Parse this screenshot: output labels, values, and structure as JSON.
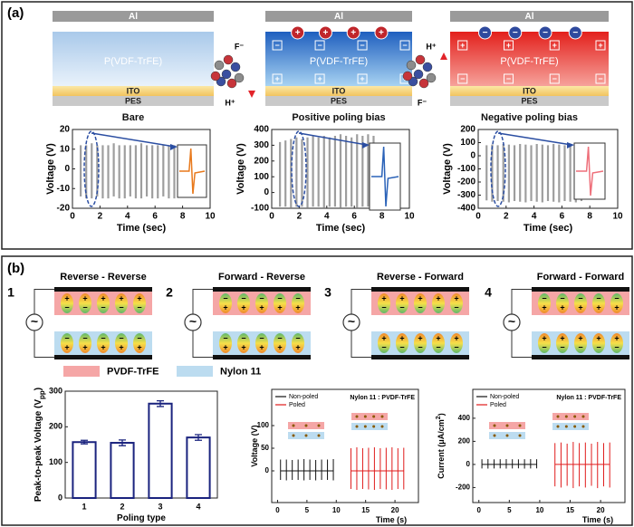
{
  "panels": [
    "(a)",
    "(b)"
  ],
  "symbols": {
    "plus": "+",
    "minus": "−",
    "ac": "~"
  },
  "devices": [
    {
      "electrode": "Al",
      "film": "P(VDF-TrFE)",
      "ito": "ITO",
      "pes": "PES",
      "caption": "Bare",
      "poling": "none"
    },
    {
      "electrode": "Al",
      "film": "P(VDF-TrFE)",
      "ito": "ITO",
      "pes": "PES",
      "caption": "Positive poling bias",
      "poling": "positive"
    },
    {
      "electrode": "Al",
      "film": "P(VDF-TrFE)",
      "ito": "ITO",
      "pes": "PES",
      "caption": "Negative poling bias",
      "poling": "negative"
    }
  ],
  "molecules": [
    {
      "top": "F⁻",
      "bottom": "H⁺"
    },
    {
      "top": "H⁺",
      "bottom": "F⁻"
    }
  ],
  "configs": [
    {
      "number": "1",
      "title": "Reverse - Reverse",
      "pvdf": "up",
      "nylon": "down"
    },
    {
      "number": "2",
      "title": "Forward - Reverse",
      "pvdf": "down",
      "nylon": "down"
    },
    {
      "number": "3",
      "title": "Reverse - Forward",
      "pvdf": "up",
      "nylon": "up"
    },
    {
      "number": "4",
      "title": "Forward - Forward",
      "pvdf": "down",
      "nylon": "up"
    }
  ],
  "legend": [
    {
      "label": "PVDF-TrFE",
      "color": "#f5a6a6"
    },
    {
      "label": "Nylon 11",
      "color": "#bcdcf0"
    }
  ],
  "chart_data": [
    {
      "type": "spikes",
      "x_label": "Time (sec)",
      "y_label": "Voltage (V)",
      "xlim": [
        0,
        10
      ],
      "xticks": [
        0,
        2,
        4,
        6,
        8,
        10
      ],
      "ylim": [
        -20,
        20
      ],
      "yticks": [
        -20,
        -10,
        0,
        10,
        20
      ],
      "series": [
        {
          "color": "#9e9e9e",
          "x": [
            0.6,
            1.0,
            1.4,
            1.8,
            2.2,
            2.6,
            3.0,
            3.4,
            3.8,
            4.2,
            4.6,
            5.0,
            5.4,
            5.8,
            6.2,
            6.6,
            7.0,
            7.4
          ],
          "highs": [
            12,
            12,
            13,
            12,
            12,
            12,
            13,
            12,
            12,
            12,
            12,
            13,
            12,
            12,
            12,
            12,
            12,
            12
          ],
          "lows": [
            -14,
            -15,
            -15,
            -14,
            -15,
            -15,
            -14,
            -15,
            -15,
            -14,
            -15,
            -15,
            -14,
            -15,
            -15,
            -14,
            -15,
            -15
          ]
        }
      ]
    },
    {
      "type": "spikes",
      "x_label": "Time (sec)",
      "y_label": "Voltage (V)",
      "xlim": [
        0,
        10
      ],
      "xticks": [
        0,
        2,
        4,
        6,
        8,
        10
      ],
      "ylim": [
        -100,
        400
      ],
      "yticks": [
        -100,
        0,
        100,
        200,
        300,
        400
      ],
      "series": [
        {
          "color": "#9e9e9e",
          "x": [
            0.6,
            1.0,
            1.4,
            1.8,
            2.2,
            2.6,
            3.0,
            3.4,
            3.8,
            4.2,
            4.6,
            5.0,
            5.4,
            5.8,
            6.2,
            6.6,
            7.0,
            7.4
          ],
          "highs": [
            320,
            330,
            340,
            350,
            340,
            350,
            360,
            350,
            360,
            350,
            360,
            370,
            360,
            350,
            370,
            360,
            370,
            360
          ],
          "lows": [
            -90,
            -90,
            -95,
            -90,
            -90,
            -95,
            -90,
            -90,
            -95,
            -90,
            -90,
            -95,
            -90,
            -90,
            -95,
            -90,
            -90,
            -95
          ]
        }
      ]
    },
    {
      "type": "spikes",
      "x_label": "Time (sec)",
      "y_label": "Voltage (V)",
      "xlim": [
        0,
        10
      ],
      "xticks": [
        0,
        2,
        4,
        6,
        8,
        10
      ],
      "ylim": [
        -400,
        200
      ],
      "yticks": [
        -400,
        -300,
        -200,
        -100,
        0,
        100,
        200
      ],
      "series": [
        {
          "color": "#9e9e9e",
          "x": [
            0.6,
            1.0,
            1.4,
            1.8,
            2.2,
            2.6,
            3.0,
            3.4,
            3.8,
            4.2,
            4.6,
            5.0,
            5.4,
            5.8,
            6.2,
            6.6,
            7.0,
            7.4
          ],
          "highs": [
            80,
            85,
            80,
            90,
            85,
            80,
            90,
            85,
            80,
            90,
            85,
            80,
            90,
            85,
            80,
            90,
            85,
            80
          ],
          "lows": [
            -340,
            -350,
            -345,
            -350,
            -355,
            -345,
            -350,
            -355,
            -345,
            -350,
            -355,
            -345,
            -350,
            -355,
            -345,
            -350,
            -355,
            -345
          ]
        }
      ]
    },
    {
      "type": "bar",
      "x_label": "Poling type",
      "y_label": "Peak-to-peak Voltage (V",
      "y_label_sub": "pp",
      "y_label_end": ")",
      "categories": [
        "1",
        "2",
        "3",
        "4"
      ],
      "values": [
        157,
        155,
        265,
        170
      ],
      "errors": [
        5,
        8,
        8,
        8
      ],
      "color": "#1a237e",
      "ylim": [
        0,
        300
      ],
      "yticks": [
        0,
        100,
        200,
        300
      ]
    },
    {
      "type": "spikes",
      "x_label": "Time (s)",
      "y_label": "Voltage (V)",
      "annotation": "Nylon 11 : PVDF-TrFE",
      "legend": "upper left",
      "xlim": [
        -1,
        24
      ],
      "xticks": [
        0,
        5,
        10,
        15,
        20
      ],
      "ylim": [
        -70,
        180
      ],
      "yticks": [
        0,
        50,
        100
      ],
      "series": [
        {
          "name": "Non-poled",
          "color": "#111111",
          "x": [
            0.5,
            1.5,
            2.5,
            3.5,
            4.5,
            5.5,
            6.5,
            7.5,
            8.5,
            9.5
          ],
          "highs": [
            25,
            25,
            24,
            25,
            26,
            25,
            24,
            25,
            25,
            26
          ],
          "lows": [
            -20,
            -21,
            -20,
            -20,
            -21,
            -20,
            -21,
            -20,
            -20,
            -21
          ]
        },
        {
          "name": "Poled",
          "color": "#e01b1b",
          "x": [
            12.5,
            13.5,
            14.5,
            15.5,
            16.5,
            17.5,
            18.5,
            19.5,
            20.5,
            21.5
          ],
          "highs": [
            50,
            52,
            50,
            51,
            52,
            50,
            51,
            52,
            50,
            51
          ],
          "lows": [
            -40,
            -42,
            -40,
            -41,
            -42,
            -40,
            -41,
            -42,
            -40,
            -41
          ]
        }
      ]
    },
    {
      "type": "spikes",
      "x_label": "Time (s)",
      "y_label": "Current (μA/cm",
      "y_label_sup": "2",
      "y_label_end": ")",
      "annotation": "Nylon 11 : PVDF-TrFE",
      "legend": "upper left",
      "xlim": [
        -1,
        24
      ],
      "xticks": [
        0,
        5,
        10,
        15,
        20
      ],
      "ylim": [
        -330,
        650
      ],
      "yticks": [
        -200,
        0,
        200,
        400
      ],
      "series": [
        {
          "name": "Non-poled",
          "color": "#111111",
          "x": [
            0.5,
            1.5,
            2.5,
            3.5,
            4.5,
            5.5,
            6.5,
            7.5,
            8.5,
            9.5
          ],
          "highs": [
            45,
            46,
            44,
            45,
            46,
            45,
            44,
            45,
            46,
            45
          ],
          "lows": [
            -35,
            -36,
            -35,
            -34,
            -36,
            -35,
            -34,
            -36,
            -35,
            -34
          ]
        },
        {
          "name": "Poled",
          "color": "#e01b1b",
          "x": [
            12.5,
            13.5,
            14.5,
            15.5,
            16.5,
            17.5,
            18.5,
            19.5,
            20.5,
            21.5
          ],
          "highs": [
            185,
            190,
            180,
            195,
            185,
            190,
            180,
            195,
            185,
            190
          ],
          "lows": [
            -190,
            -200,
            -185,
            -205,
            -190,
            -200,
            -185,
            -205,
            -190,
            -200
          ]
        }
      ]
    }
  ]
}
